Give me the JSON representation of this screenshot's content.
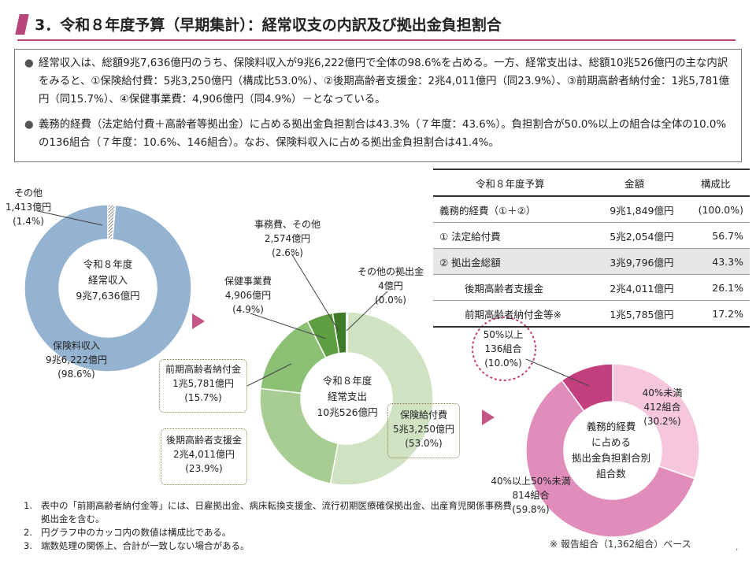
{
  "title": "3．令和８年度予算（早期集計）：経常収支の内訳及び拠出金負担割合",
  "summary": {
    "bullet_symbol": "●",
    "bullet1": "経常収入は、総額9兆7,636億円のうち、保険料収入が9兆6,222億円で全体の98.6%を占める。一方、経常支出は、総額10兆526億円の主な内訳をみると、①保険給付費：5兆3,250億円（構成比53.0%）、②後期高齢者支援金：2兆4,011億円（同23.9%）、③前期高齢者納付金：1兆5,781億円（同15.7%）、④保健事業費：4,906億円（同4.9%）－となっている。",
    "bullet2": "義務的経費（法定給付費＋高齢者等拠出金）に占める拠出金負担割合は43.3%（７年度：43.6%）。負担割合が50.0%以上の組合は全体の10.0%の136組合（７年度：10.6%、146組合）。なお、保険料収入に占める拠出金負担割合は41.4%。"
  },
  "colors": {
    "accent": "#b7477a",
    "revenue_main": "#94b3d1",
    "revenue_other": "#d0d0d0",
    "exp_benefit": "#cfe3c2",
    "exp_elderly_support": "#a8cd92",
    "exp_early_elderly": "#8cc175",
    "exp_health": "#5f9e43",
    "exp_admin": "#3d7a2a",
    "exp_other": "#2e6b22",
    "ratio_under40": "#f5c6dc",
    "ratio_40to50": "#e08dbb",
    "ratio_over50": "#c2407e"
  },
  "chart_data": [
    {
      "type": "pie",
      "id": "revenue",
      "center_label": [
        "令和８年度",
        "経常収入",
        "9兆7,636億円"
      ],
      "slices": [
        {
          "name": "保険料収入",
          "value": 96222,
          "amount_label": "9兆6,222億円",
          "percent_label": "(98.6%)",
          "color": "#94b3d1"
        },
        {
          "name": "その他",
          "value": 1413,
          "amount_label": "1,413億円",
          "percent_label": "(1.4%)",
          "color": "#d0d0d0"
        }
      ]
    },
    {
      "type": "pie",
      "id": "expenditure",
      "center_label": [
        "令和８年度",
        "経常支出",
        "10兆526億円"
      ],
      "slices": [
        {
          "name": "保険給付費",
          "value": 53250,
          "amount_label": "5兆3,250億円",
          "percent_label": "(53.0%)",
          "color": "#cfe3c2"
        },
        {
          "name": "後期高齢者支援金",
          "value": 24011,
          "amount_label": "2兆4,011億円",
          "percent_label": "(23.9%)",
          "color": "#a8cd92"
        },
        {
          "name": "前期高齢者納付金",
          "value": 15781,
          "amount_label": "1兆5,781億円",
          "percent_label": "(15.7%)",
          "color": "#8cc175"
        },
        {
          "name": "保健事業費",
          "value": 4906,
          "amount_label": "4,906億円",
          "percent_label": "(4.9%)",
          "color": "#5f9e43"
        },
        {
          "name": "事務費、その他",
          "value": 2574,
          "amount_label": "2,574億円",
          "percent_label": "(2.6%)",
          "color": "#3d7a2a"
        },
        {
          "name": "その他の拠出金",
          "value": 4,
          "amount_label": "4億円",
          "percent_label": "(0.0%)",
          "color": "#2e6b22"
        }
      ]
    },
    {
      "type": "pie",
      "id": "contribution_ratio",
      "center_label": [
        "義務的経費",
        "に占める",
        "拠出金負担割合別",
        "組合数"
      ],
      "slices": [
        {
          "name": "40%未満",
          "value": 412,
          "amount_label": "412組合",
          "percent_label": "(30.2%)",
          "color": "#f5c6dc"
        },
        {
          "name": "40%以上50%未満",
          "value": 814,
          "amount_label": "814組合",
          "percent_label": "(59.8%)",
          "color": "#e08dbb"
        },
        {
          "name": "50%以上",
          "value": 136,
          "amount_label": "136組合",
          "percent_label": "(10.0%)",
          "color": "#c2407e"
        }
      ]
    }
  ],
  "table": {
    "headers": [
      "令和８年度予算",
      "金額",
      "構成比"
    ],
    "rows": [
      {
        "label": "義務的経費（①＋②）",
        "amount": "9兆1,849億円",
        "ratio": "(100.0%)"
      },
      {
        "label": "① 法定給付費",
        "amount": "5兆2,054億円",
        "ratio": "56.7%"
      },
      {
        "label": "② 拠出金総額",
        "amount": "3兆9,796億円",
        "ratio": "43.3%"
      },
      {
        "label": "後期高齢者支援金",
        "amount": "2兆4,011億円",
        "ratio": "26.1%"
      },
      {
        "label": "前期高齢者納付金等※",
        "amount": "1兆5,785億円",
        "ratio": "17.2%"
      }
    ]
  },
  "notes": [
    {
      "num": "1.",
      "text": "表中の「前期高齢者納付金等」には、日雇拠出金、病床転換支援金、流行初期医療確保拠出金、出産育児関係事務費拠出金を含む。"
    },
    {
      "num": "2.",
      "text": "円グラフ中のカッコ内の数値は構成比である。"
    },
    {
      "num": "3.",
      "text": "端数処理の関係上、合計が一致しない場合がある。"
    }
  ],
  "footnote": "※ 報告組合（1,362組合）ベース"
}
